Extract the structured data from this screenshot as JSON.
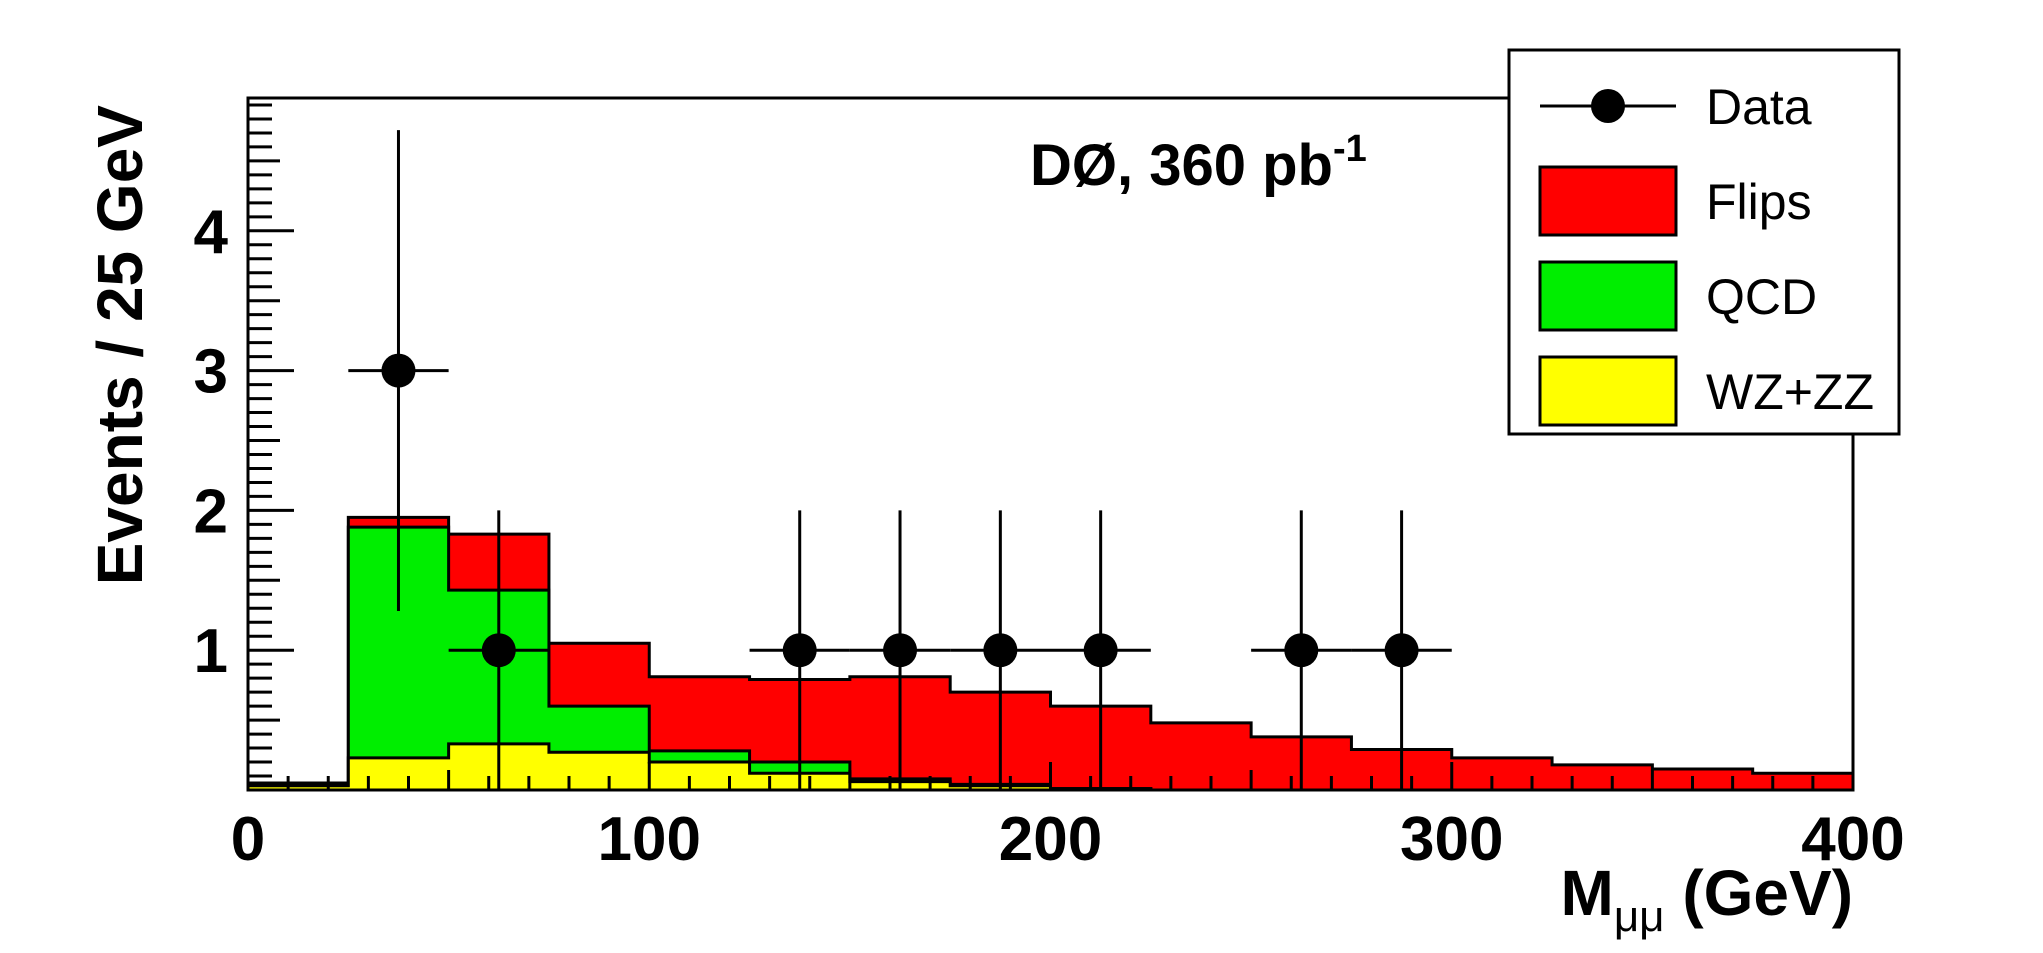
{
  "chart_data": {
    "type": "bar",
    "style": "stacked-histogram",
    "title": "",
    "annotation": {
      "text": "DØ, 360 pb",
      "superscript": "-1"
    },
    "xlabel": {
      "main": "M",
      "sub": "μμ",
      "suffix": " (GeV)"
    },
    "ylabel": "Events / 25 GeV",
    "xlim": [
      0,
      400
    ],
    "ylim": [
      0,
      4.95
    ],
    "xticks": [
      0,
      100,
      200,
      300,
      400
    ],
    "xtick_labels": [
      "0",
      "100",
      "200",
      "300",
      "400"
    ],
    "yticks": [
      1,
      2,
      3,
      4
    ],
    "ytick_labels": [
      "1",
      "2",
      "3",
      "4"
    ],
    "bin_width": 25,
    "bin_edges": [
      0,
      25,
      50,
      75,
      100,
      125,
      150,
      175,
      200,
      225,
      250,
      275,
      300,
      325,
      350,
      375,
      400
    ],
    "series": [
      {
        "name": "WZ+ZZ",
        "color": "#ffff00",
        "values": [
          0.03,
          0.23,
          0.33,
          0.27,
          0.2,
          0.12,
          0.06,
          0.03,
          0.01,
          0.0,
          0.0,
          0.0,
          0.0,
          0.0,
          0.0,
          0.0
        ]
      },
      {
        "name": "QCD",
        "color": "#00ee00",
        "values": [
          0.0,
          1.65,
          1.1,
          0.33,
          0.08,
          0.08,
          0.02,
          0.01,
          0.0,
          0.0,
          0.0,
          0.0,
          0.0,
          0.0,
          0.0,
          0.0
        ]
      },
      {
        "name": "Flips",
        "color": "#ff0000",
        "values": [
          0.02,
          0.07,
          0.4,
          0.45,
          0.53,
          0.59,
          0.73,
          0.66,
          0.59,
          0.48,
          0.38,
          0.29,
          0.23,
          0.18,
          0.15,
          0.12
        ]
      }
    ],
    "data_points": {
      "name": "Data",
      "x": [
        37.5,
        62.5,
        137.5,
        162.5,
        187.5,
        212.5,
        262.5,
        287.5
      ],
      "y": [
        3,
        1,
        1,
        1,
        1,
        1,
        1,
        1
      ],
      "x_err": 12.5,
      "y_err_low": [
        1.72,
        1,
        1,
        1,
        1,
        1,
        1,
        1
      ],
      "y_err_high": [
        1.72,
        1,
        1,
        1,
        1,
        1,
        1,
        1
      ]
    },
    "legend": {
      "placement": "top-right",
      "entries": [
        {
          "label": "Data",
          "kind": "marker"
        },
        {
          "label": "Flips",
          "kind": "box",
          "color": "#ff0000"
        },
        {
          "label": "QCD",
          "kind": "box",
          "color": "#00ee00"
        },
        {
          "label": "WZ+ZZ",
          "kind": "box",
          "color": "#ffff00"
        }
      ]
    }
  }
}
